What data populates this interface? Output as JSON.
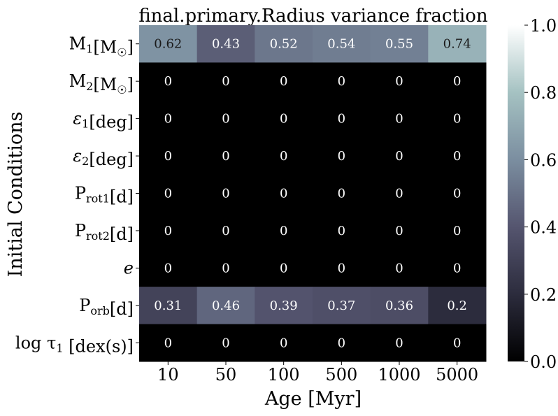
{
  "chart_data": {
    "type": "heatmap",
    "title": "final.primary.Radius variance fraction",
    "xlabel": "Age [Myr]",
    "ylabel": "Initial Conditions",
    "x_categories": [
      "10",
      "50",
      "100",
      "500",
      "1000",
      "5000"
    ],
    "y_categories": [
      {
        "base": "M",
        "sub": "1",
        "unit": "[M",
        "unit_sub": "☉",
        "unit_end": "]"
      },
      {
        "base": "M",
        "sub": "2",
        "unit": "[M",
        "unit_sub": "☉",
        "unit_end": "]"
      },
      {
        "base": "ε",
        "sub": "1",
        "unit": "[deg]",
        "unit_sub": "",
        "unit_end": ""
      },
      {
        "base": "ε",
        "sub": "2",
        "unit": "[deg]",
        "unit_sub": "",
        "unit_end": ""
      },
      {
        "base": "P",
        "sub": "rot1",
        "unit": "[d]",
        "unit_sub": "",
        "unit_end": ""
      },
      {
        "base": "P",
        "sub": "rot2",
        "unit": "[d]",
        "unit_sub": "",
        "unit_end": ""
      },
      {
        "base": "e",
        "sub": "",
        "unit": "",
        "unit_sub": "",
        "unit_end": ""
      },
      {
        "base": "P",
        "sub": "orb",
        "unit": "[d]",
        "unit_sub": "",
        "unit_end": ""
      },
      {
        "base": "log τ",
        "sub": "1",
        "unit": " [dex(s)]",
        "unit_sub": "",
        "unit_end": ""
      }
    ],
    "values": [
      [
        0.62,
        0.43,
        0.52,
        0.54,
        0.55,
        0.74
      ],
      [
        0,
        0,
        0,
        0,
        0,
        0
      ],
      [
        0,
        0,
        0,
        0,
        0,
        0
      ],
      [
        0,
        0,
        0,
        0,
        0,
        0
      ],
      [
        0,
        0,
        0,
        0,
        0,
        0
      ],
      [
        0,
        0,
        0,
        0,
        0,
        0
      ],
      [
        0,
        0,
        0,
        0,
        0,
        0
      ],
      [
        0.31,
        0.46,
        0.39,
        0.37,
        0.36,
        0.2
      ],
      [
        0,
        0,
        0,
        0,
        0,
        0
      ]
    ],
    "colorbar": {
      "range": [
        0.0,
        1.0
      ],
      "ticks": [
        "0.0",
        "0.2",
        "0.4",
        "0.6",
        "0.8",
        "1.0"
      ],
      "colormap": "bone",
      "colors": [
        "#000000",
        "#2c2c3d",
        "#55556f",
        "#7b8ea0",
        "#a5c2c2",
        "#ffffff"
      ]
    }
  }
}
